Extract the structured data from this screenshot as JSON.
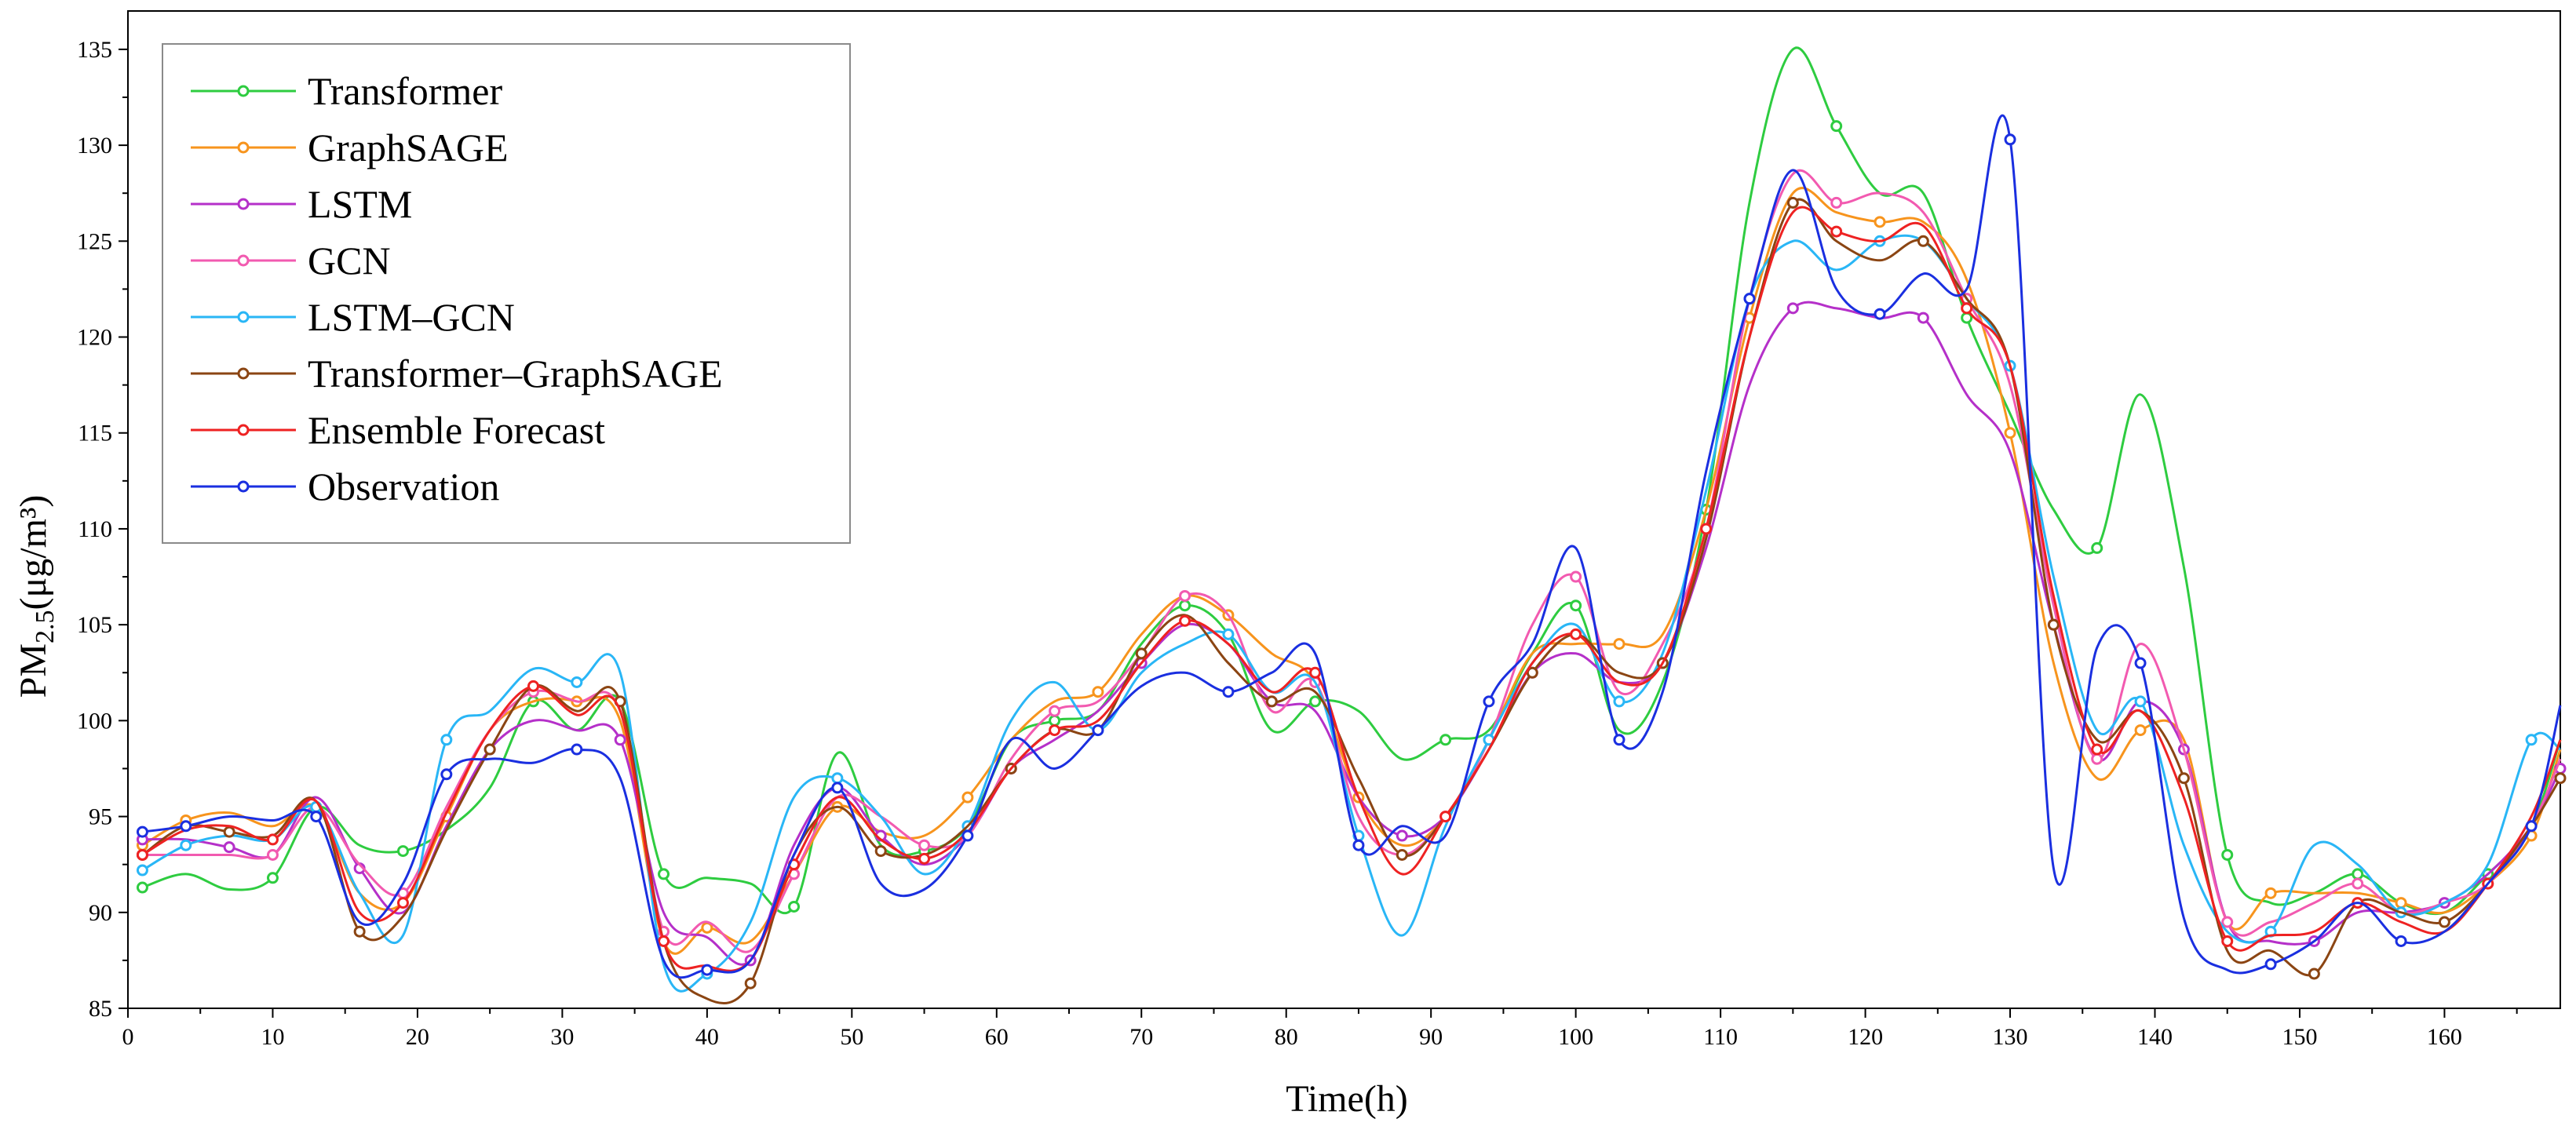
{
  "chart_data": {
    "type": "line",
    "title": "",
    "xlabel": "Time(h)",
    "ylabel": {
      "base": "PM",
      "sub": "2.5",
      "unit": "(μg/m³)"
    },
    "xlim": [
      0,
      168
    ],
    "ylim": [
      85,
      137
    ],
    "xticks": [
      0,
      10,
      20,
      30,
      40,
      50,
      60,
      70,
      80,
      90,
      100,
      110,
      120,
      130,
      140,
      150,
      160
    ],
    "yticks": [
      85,
      90,
      95,
      100,
      105,
      110,
      115,
      120,
      125,
      130,
      135
    ],
    "grid": false,
    "legend_position": "top-left",
    "x": [
      1,
      4,
      7,
      10,
      13,
      16,
      19,
      22,
      25,
      28,
      31,
      34,
      37,
      40,
      43,
      46,
      49,
      52,
      55,
      58,
      61,
      64,
      67,
      70,
      73,
      76,
      79,
      82,
      85,
      88,
      91,
      94,
      97,
      100,
      103,
      106,
      109,
      112,
      115,
      118,
      121,
      124,
      127,
      130,
      133,
      136,
      139,
      142,
      145,
      148,
      151,
      154,
      157,
      160,
      163,
      166,
      168
    ],
    "series": [
      {
        "name": "Transformer",
        "color": "#2ecc40",
        "values": [
          91.3,
          92.0,
          91.2,
          91.8,
          95.5,
          93.5,
          93.2,
          94.3,
          96.5,
          101.0,
          99.5,
          101.0,
          92.0,
          91.8,
          91.5,
          90.3,
          98.3,
          93.5,
          93.2,
          94.5,
          99.0,
          100.0,
          100.5,
          104.0,
          106.0,
          104.5,
          99.5,
          101.0,
          100.5,
          98.0,
          99.0,
          99.5,
          103.5,
          106.0,
          99.5,
          102.0,
          111.0,
          127.0,
          135.0,
          131.0,
          127.5,
          127.5,
          121.0,
          116.0,
          111.0,
          109.0,
          117.0,
          108.0,
          93.0,
          90.5,
          91.0,
          92.0,
          90.5,
          90.0,
          92.0,
          94.5,
          99.0
        ]
      },
      {
        "name": "GraphSAGE",
        "color": "#f7941d",
        "values": [
          93.5,
          94.8,
          95.2,
          94.5,
          95.5,
          91.0,
          90.5,
          95.0,
          99.5,
          101.0,
          101.0,
          100.0,
          88.5,
          89.2,
          88.5,
          92.0,
          95.5,
          94.2,
          94.0,
          96.0,
          99.0,
          101.0,
          101.5,
          104.5,
          106.5,
          105.5,
          103.5,
          102.0,
          96.0,
          93.5,
          95.0,
          99.0,
          103.5,
          104.0,
          104.0,
          104.5,
          111.0,
          121.0,
          127.5,
          126.5,
          126.0,
          126.0,
          123.0,
          115.0,
          103.0,
          97.0,
          99.5,
          99.0,
          89.5,
          91.0,
          91.0,
          91.0,
          90.5,
          90.0,
          91.5,
          94.0,
          98.5
        ]
      },
      {
        "name": "LSTM",
        "color": "#b530c9",
        "values": [
          93.8,
          93.8,
          93.4,
          93.0,
          96.0,
          92.3,
          90.0,
          94.5,
          98.5,
          100.0,
          99.5,
          99.0,
          90.0,
          88.7,
          87.5,
          93.5,
          96.5,
          94.0,
          92.5,
          94.0,
          97.5,
          99.0,
          100.5,
          103.0,
          105.0,
          104.0,
          101.0,
          100.5,
          96.0,
          94.0,
          95.0,
          98.5,
          102.5,
          103.5,
          102.0,
          103.0,
          109.0,
          117.5,
          121.5,
          121.5,
          121.0,
          121.0,
          117.0,
          114.0,
          105.0,
          98.0,
          101.0,
          98.5,
          89.5,
          88.5,
          88.5,
          90.0,
          90.0,
          90.5,
          92.0,
          94.5,
          97.5
        ]
      },
      {
        "name": "GCN",
        "color": "#f25ab0",
        "values": [
          93.0,
          93.0,
          93.0,
          93.0,
          95.5,
          92.5,
          91.0,
          95.5,
          99.5,
          101.5,
          101.0,
          100.5,
          89.0,
          89.5,
          88.0,
          92.0,
          96.0,
          95.0,
          93.5,
          94.0,
          98.0,
          100.5,
          101.0,
          103.5,
          106.5,
          105.5,
          100.5,
          102.0,
          95.0,
          93.0,
          95.0,
          99.0,
          105.0,
          107.5,
          101.5,
          104.0,
          110.0,
          122.0,
          128.5,
          127.0,
          127.5,
          126.5,
          122.0,
          117.5,
          106.0,
          98.0,
          104.0,
          98.5,
          89.5,
          89.5,
          90.5,
          91.5,
          90.0,
          90.5,
          91.5,
          94.5,
          98.0
        ]
      },
      {
        "name": "LSTM–GCN",
        "color": "#29b6f6",
        "values": [
          92.2,
          93.5,
          94.0,
          93.8,
          95.5,
          91.0,
          88.8,
          99.0,
          100.5,
          102.7,
          102.0,
          102.5,
          87.3,
          86.8,
          89.5,
          96.0,
          97.0,
          95.0,
          92.0,
          94.5,
          100.0,
          102.0,
          99.5,
          102.5,
          104.0,
          104.5,
          101.5,
          102.0,
          94.0,
          88.8,
          94.5,
          99.0,
          103.0,
          105.0,
          101.0,
          103.5,
          112.0,
          122.0,
          125.0,
          123.5,
          125.0,
          125.0,
          122.0,
          118.5,
          107.5,
          99.5,
          101.0,
          93.5,
          89.0,
          89.0,
          93.5,
          92.5,
          90.0,
          90.5,
          92.5,
          99.0,
          98.5
        ]
      },
      {
        "name": "Transformer–GraphSAGE",
        "color": "#8b4513",
        "values": [
          93.0,
          94.5,
          94.2,
          94.0,
          95.8,
          89.0,
          89.8,
          94.3,
          98.5,
          101.8,
          100.5,
          101.0,
          88.5,
          85.5,
          86.3,
          93.0,
          95.5,
          93.2,
          93.0,
          94.5,
          97.5,
          99.5,
          99.5,
          103.5,
          105.5,
          103.0,
          101.0,
          101.5,
          97.0,
          93.0,
          95.0,
          98.5,
          102.5,
          104.5,
          102.5,
          103.0,
          109.5,
          120.0,
          127.0,
          125.0,
          124.0,
          125.0,
          122.0,
          118.5,
          105.0,
          99.0,
          100.5,
          97.0,
          88.0,
          88.0,
          86.8,
          90.5,
          90.0,
          89.5,
          91.5,
          94.5,
          97.0
        ]
      },
      {
        "name": "Ensemble Forecast",
        "color": "#ee2222",
        "values": [
          93.0,
          94.3,
          94.5,
          93.8,
          95.8,
          90.0,
          90.5,
          95.2,
          99.5,
          101.8,
          100.3,
          100.5,
          88.5,
          87.2,
          87.5,
          92.5,
          96.0,
          93.8,
          92.8,
          94.2,
          97.5,
          99.5,
          100.0,
          103.0,
          105.2,
          104.0,
          101.5,
          102.5,
          96.0,
          92.0,
          95.0,
          98.5,
          103.0,
          104.5,
          102.0,
          103.0,
          110.0,
          120.0,
          126.5,
          125.5,
          125.0,
          125.8,
          121.5,
          118.5,
          106.5,
          98.5,
          100.5,
          96.0,
          88.5,
          88.8,
          89.0,
          90.5,
          89.5,
          89.0,
          91.5,
          95.0,
          99.0
        ]
      },
      {
        "name": "Observation",
        "color": "#1a2fe0",
        "values": [
          94.2,
          94.5,
          95.0,
          94.8,
          95.0,
          89.5,
          91.5,
          97.2,
          98.0,
          97.8,
          98.5,
          97.0,
          87.5,
          87.0,
          87.5,
          93.0,
          96.5,
          91.5,
          91.2,
          94.0,
          99.0,
          97.5,
          99.5,
          101.8,
          102.5,
          101.5,
          102.5,
          103.5,
          93.5,
          94.5,
          94.0,
          101.0,
          104.0,
          109.0,
          99.0,
          101.5,
          113.0,
          122.0,
          128.7,
          122.5,
          121.2,
          123.3,
          122.5,
          130.3,
          92.3,
          103.8,
          103.0,
          89.7,
          87.0,
          87.3,
          88.5,
          90.5,
          88.5,
          89.0,
          91.5,
          94.5,
          100.8
        ]
      }
    ]
  }
}
